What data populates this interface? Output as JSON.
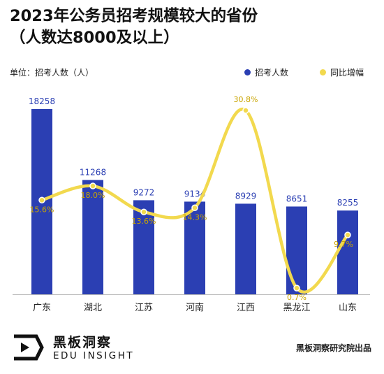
{
  "title_line1": "2023年公务员招考规模较大的省份",
  "title_line2": "（人数达8000及以上）",
  "unit_label": "单位：招考人数（人）",
  "legend": [
    {
      "label": "招考人数",
      "color": "#2B3FB3"
    },
    {
      "label": "同比增幅",
      "color": "#F2D94E"
    }
  ],
  "chart_data": {
    "type": "bar",
    "title": "2023年公务员招考规模较大的省份（人数达8000及以上）",
    "categories": [
      "广东",
      "湖北",
      "江苏",
      "河南",
      "江西",
      "黑龙江",
      "山东"
    ],
    "series": [
      {
        "name": "招考人数",
        "type": "bar",
        "color": "#2B3FB3",
        "values": [
          18258,
          11268,
          9272,
          9134,
          8929,
          8651,
          8255
        ],
        "labels": [
          "18258",
          "11268",
          "9272",
          "9134",
          "8929",
          "8651",
          "8255"
        ]
      },
      {
        "name": "同比增幅",
        "type": "line",
        "smooth": true,
        "color": "#F2D94E",
        "values": [
          15.6,
          18.0,
          13.6,
          14.3,
          30.8,
          0.7,
          9.7
        ],
        "labels": [
          "15.6%",
          "18.0%",
          "13.6%",
          "14.3%",
          "30.8%",
          "0.7%",
          "9.7%"
        ]
      }
    ],
    "ylabel": "招考人数（人）",
    "ylim_bar": [
      0,
      18258
    ],
    "ylim_line": [
      0,
      30.8
    ],
    "grid": false,
    "legend_position": "top-right"
  },
  "footer": {
    "logo_cn": "黑板洞察",
    "logo_en": "EDU INSIGHT",
    "credit": "黑板洞察研究院出品"
  }
}
